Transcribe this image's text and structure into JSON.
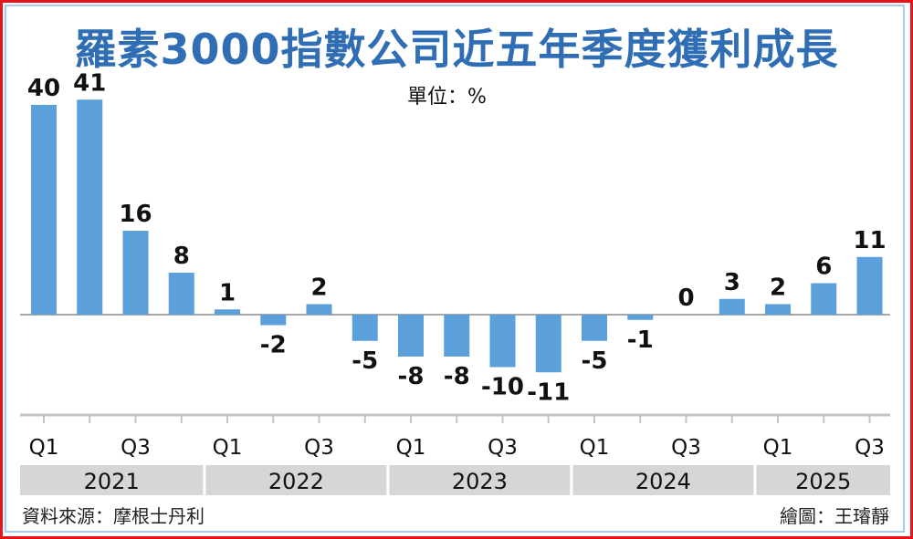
{
  "chart_data": {
    "type": "bar",
    "title": "羅素3000指數公司近五年季度獲利成長",
    "unit_label": "單位：%",
    "categories": [
      "2021 Q1",
      "2021 Q2",
      "2021 Q3",
      "2021 Q4",
      "2022 Q1",
      "2022 Q2",
      "2022 Q3",
      "2022 Q4",
      "2023 Q1",
      "2023 Q2",
      "2023 Q3",
      "2023 Q4",
      "2024 Q1",
      "2024 Q2",
      "2024 Q3",
      "2024 Q4",
      "2025 Q1",
      "2025 Q2",
      "2025 Q3"
    ],
    "tick_labels": [
      "Q1",
      "",
      "Q3",
      "",
      "Q1",
      "",
      "Q3",
      "",
      "Q1",
      "",
      "Q3",
      "",
      "Q1",
      "",
      "Q3",
      "",
      "Q1",
      "",
      "Q3"
    ],
    "values": [
      40,
      41,
      16,
      8,
      1,
      -2,
      2,
      -5,
      -8,
      -8,
      -10,
      -11,
      -5,
      -1,
      0,
      3,
      2,
      6,
      11
    ],
    "years": [
      {
        "label": "2021",
        "quarters": 4
      },
      {
        "label": "2022",
        "quarters": 4
      },
      {
        "label": "2023",
        "quarters": 4
      },
      {
        "label": "2024",
        "quarters": 4
      },
      {
        "label": "2025",
        "quarters": 3
      }
    ],
    "ylim": [
      -11,
      41
    ],
    "grid": false,
    "bar_color": "#5b9fdb",
    "title_color": "#2f6db5"
  },
  "footer": {
    "source": "資料來源：摩根士丹利",
    "credit": "繪圖：王璿靜"
  }
}
